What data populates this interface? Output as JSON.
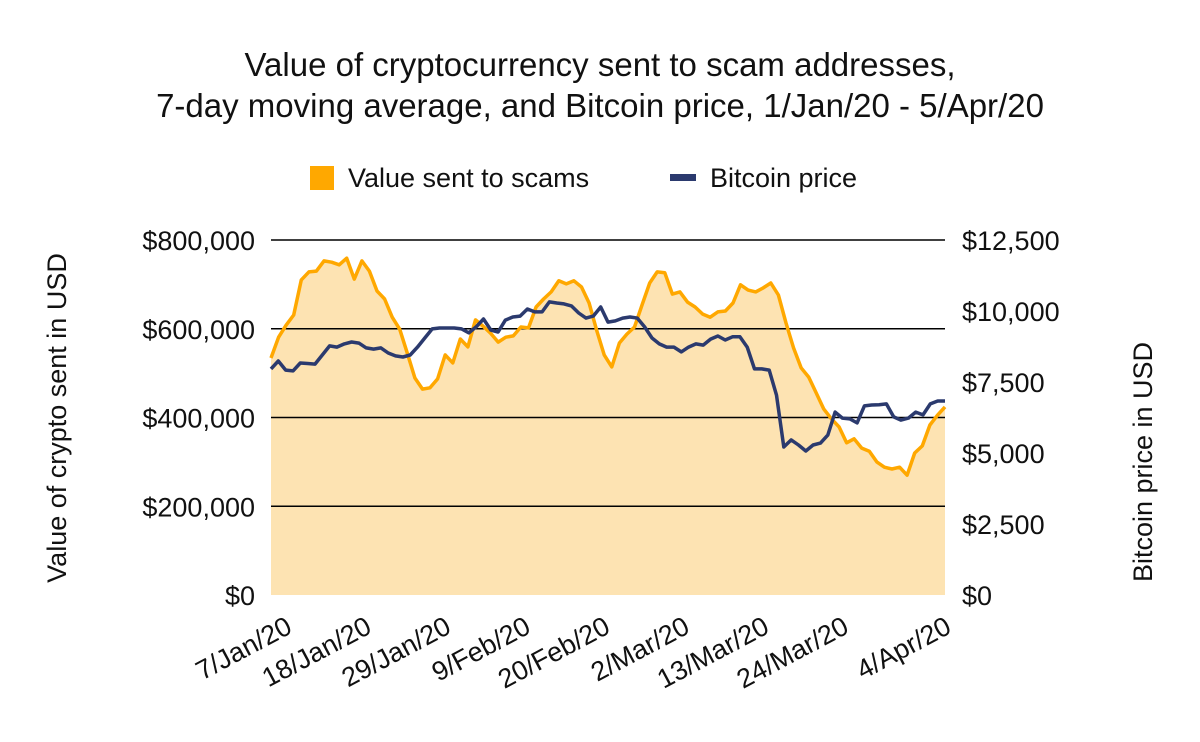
{
  "chart_data": {
    "type": "area+line",
    "title": [
      "Value of cryptocurrency sent to scam addresses,",
      "7-day moving average, and Bitcoin price, 1/Jan/20 - 5/Apr/20"
    ],
    "legend": {
      "position": "top",
      "entries": [
        "Value sent to scams",
        "Bitcoin price"
      ]
    },
    "ylabel_left": "Value of crypto sent in USD",
    "ylabel_right": "Bitcoin price in USD",
    "ylim_left": [
      0,
      800000
    ],
    "ylim_right": [
      0,
      12500
    ],
    "yticks_left": [
      "$0",
      "$200,000",
      "$400,000",
      "$600,000",
      "$800,000"
    ],
    "yticks_right": [
      "$0",
      "$2,500",
      "$5,000",
      "$7,500",
      "$10,000",
      "$12,500"
    ],
    "x_range": [
      "1/Jan/20",
      "5/Apr/20"
    ],
    "xticks": [
      {
        "label": "7/Jan/20",
        "day": 6
      },
      {
        "label": "18/Jan/20",
        "day": 17
      },
      {
        "label": "29/Jan/20",
        "day": 28
      },
      {
        "label": "9/Feb/20",
        "day": 39
      },
      {
        "label": "20/Feb/20",
        "day": 50
      },
      {
        "label": "2/Mar/20",
        "day": 61
      },
      {
        "label": "13/Mar/20",
        "day": 72
      },
      {
        "label": "24/Mar/20",
        "day": 83
      },
      {
        "label": "4/Apr/20",
        "day": 94
      }
    ],
    "grid": "horizontal",
    "colors": {
      "scams_line": "#FFA800",
      "scams_fill": "#FDE3B2",
      "bitcoin": "#2B3A6E",
      "grid": "#000000"
    },
    "series": [
      {
        "name": "Value sent to scams",
        "axis": "left",
        "style": "area",
        "values": [
          534000,
          581000,
          608000,
          631000,
          710000,
          728000,
          730000,
          753000,
          750000,
          744000,
          759000,
          712000,
          753000,
          730000,
          685000,
          667000,
          626000,
          599000,
          545000,
          489000,
          464000,
          467000,
          487000,
          541000,
          523000,
          577000,
          559000,
          620000,
          606000,
          590000,
          570000,
          581000,
          584000,
          604000,
          602000,
          649000,
          667000,
          683000,
          708000,
          701000,
          708000,
          694000,
          658000,
          597000,
          541000,
          514000,
          568000,
          588000,
          604000,
          654000,
          703000,
          728000,
          726000,
          678000,
          683000,
          660000,
          649000,
          633000,
          626000,
          638000,
          640000,
          658000,
          699000,
          687000,
          683000,
          692000,
          703000,
          676000,
          613000,
          557000,
          512000,
          491000,
          455000,
          419000,
          397000,
          379000,
          343000,
          352000,
          331000,
          324000,
          300000,
          288000,
          284000,
          288000,
          270000,
          320000,
          336000,
          383000,
          405000,
          424000
        ]
      },
      {
        "name": "Bitcoin price",
        "axis": "right",
        "style": "line",
        "values": [
          7960,
          8240,
          7920,
          7890,
          8170,
          8150,
          8130,
          8450,
          8770,
          8730,
          8840,
          8910,
          8870,
          8700,
          8660,
          8700,
          8520,
          8420,
          8380,
          8450,
          8730,
          9050,
          9370,
          9400,
          9400,
          9400,
          9370,
          9230,
          9440,
          9720,
          9330,
          9260,
          9680,
          9790,
          9820,
          10070,
          9970,
          9970,
          10320,
          10280,
          10250,
          10180,
          9930,
          9750,
          9820,
          10140,
          9610,
          9650,
          9750,
          9790,
          9750,
          9440,
          9050,
          8840,
          8730,
          8730,
          8560,
          8730,
          8840,
          8800,
          9010,
          9120,
          8980,
          9090,
          9090,
          8730,
          7960,
          7960,
          7920,
          7040,
          5210,
          5460,
          5280,
          5070,
          5280,
          5350,
          5630,
          6440,
          6230,
          6200,
          6060,
          6660,
          6690,
          6700,
          6730,
          6270,
          6160,
          6230,
          6440,
          6340,
          6730,
          6830,
          6830
        ]
      }
    ]
  }
}
